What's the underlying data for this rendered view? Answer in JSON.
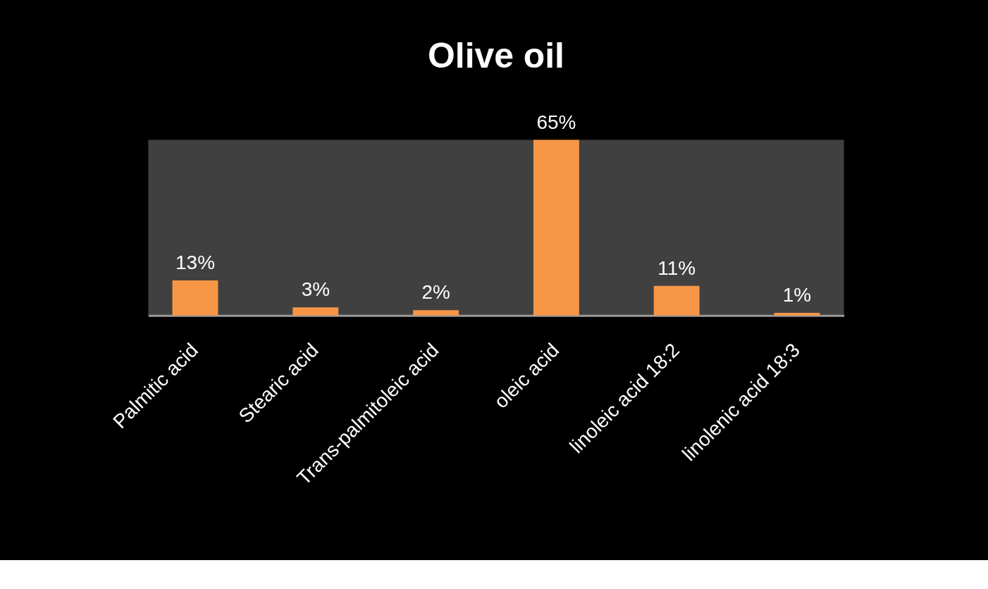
{
  "chart_data": {
    "type": "bar",
    "title": "Olive oil",
    "categories": [
      "Palmitic acid",
      "Stearic acid",
      "Trans-palmitoleic acid",
      "oleic acid",
      "linoleic acid 18:2",
      "linolenic acid 18:3"
    ],
    "values": [
      13,
      3,
      2,
      65,
      11,
      1
    ],
    "color": "#f79646",
    "value_labels": [
      "13%",
      "3%",
      "2%",
      "65%",
      "11%",
      "1%"
    ]
  }
}
